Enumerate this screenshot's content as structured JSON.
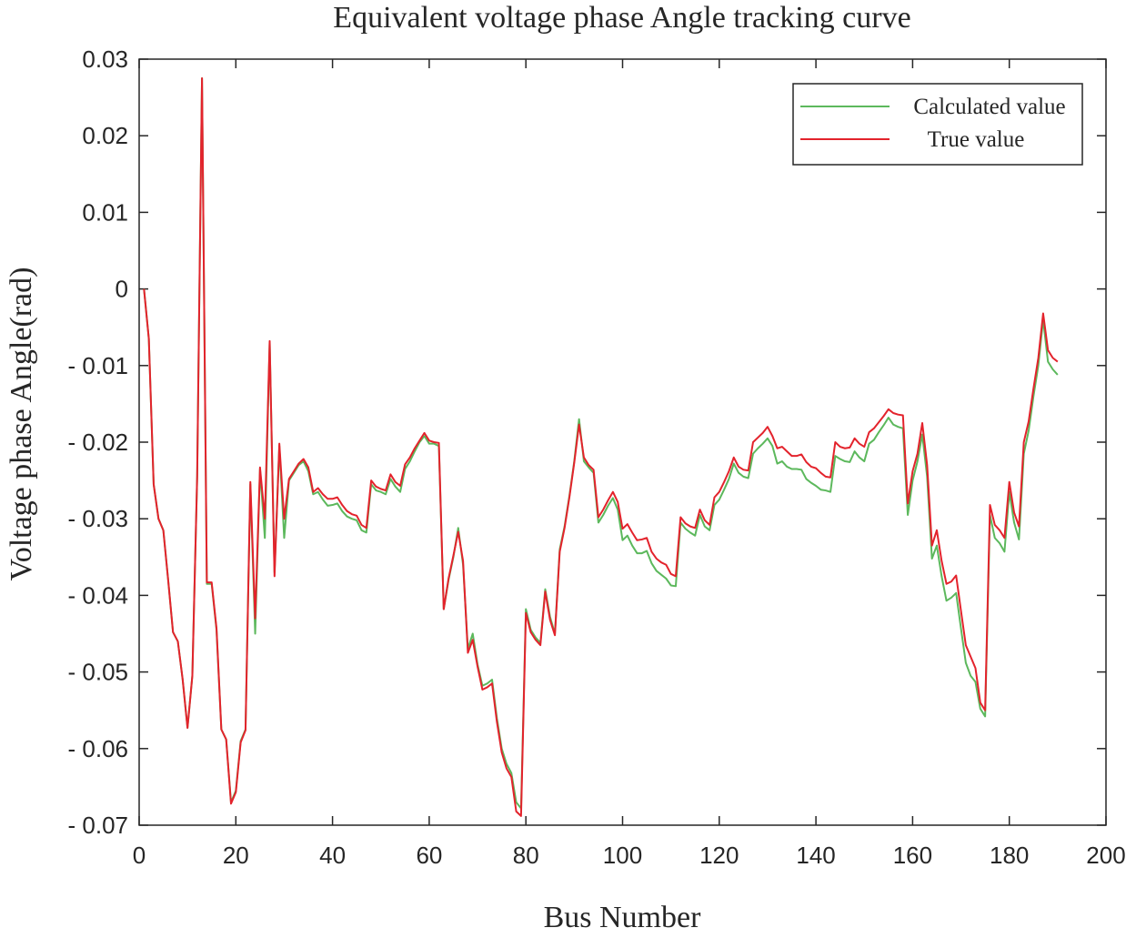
{
  "chart_data": {
    "type": "line",
    "title": "Equivalent voltage phase Angle tracking curve",
    "xlabel": "Bus Number",
    "ylabel": "Voltage phase Angle(rad)",
    "xlim": [
      0,
      200
    ],
    "ylim": [
      -0.07,
      0.03
    ],
    "xticks": [
      "0",
      "20",
      "40",
      "60",
      "80",
      "100",
      "120",
      "140",
      "160",
      "180",
      "200"
    ],
    "yticks": [
      "0.03",
      "0.02",
      "0.01",
      "0",
      "- 0.01",
      "- 0.02",
      "- 0.03",
      "- 0.04",
      "- 0.05",
      "- 0.06",
      "- 0.07"
    ],
    "grid": false,
    "legend_position": "top-right",
    "series": [
      {
        "name": "Calculated value",
        "color": "#5cb85c",
        "x": [
          1,
          2,
          3,
          4,
          5,
          6,
          7,
          8,
          9,
          10,
          11,
          12,
          13,
          14,
          15,
          16,
          17,
          18,
          19,
          20,
          21,
          22,
          23,
          24,
          25,
          26,
          27,
          28,
          29,
          30,
          31,
          32,
          33,
          34,
          35,
          36,
          37,
          38,
          39,
          40,
          41,
          42,
          43,
          44,
          45,
          46,
          47,
          48,
          49,
          50,
          51,
          52,
          53,
          54,
          55,
          56,
          57,
          58,
          59,
          60,
          61,
          62,
          63,
          64,
          65,
          66,
          67,
          68,
          69,
          70,
          71,
          72,
          73,
          74,
          75,
          76,
          77,
          78,
          79,
          80,
          81,
          82,
          83,
          84,
          85,
          86,
          87,
          88,
          89,
          90,
          91,
          92,
          93,
          94,
          95,
          96,
          97,
          98,
          99,
          100,
          101,
          102,
          103,
          104,
          105,
          106,
          107,
          108,
          109,
          110,
          111,
          112,
          113,
          114,
          115,
          116,
          117,
          118,
          119,
          120,
          121,
          122,
          123,
          124,
          125,
          126,
          127,
          128,
          129,
          130,
          131,
          132,
          133,
          134,
          135,
          136,
          137,
          138,
          139,
          140,
          141,
          142,
          143,
          144,
          145,
          146,
          147,
          148,
          149,
          150,
          151,
          152,
          153,
          154,
          155,
          156,
          157,
          158,
          159,
          160,
          161,
          162,
          163,
          164,
          165,
          166,
          167,
          168,
          169,
          170,
          171,
          172,
          173,
          174,
          175,
          176,
          177,
          178,
          179,
          180,
          181,
          182,
          183,
          184,
          185,
          186,
          187,
          188,
          189,
          190
        ],
        "y": [
          0,
          -0.0065,
          -0.0255,
          -0.03,
          -0.0315,
          -0.038,
          -0.0448,
          -0.046,
          -0.051,
          -0.0573,
          -0.0505,
          -0.0245,
          0.0275,
          -0.0385,
          -0.0385,
          -0.0445,
          -0.0575,
          -0.0588,
          -0.067,
          -0.0655,
          -0.059,
          -0.0575,
          -0.0255,
          -0.045,
          -0.0235,
          -0.0325,
          -0.007,
          -0.037,
          -0.0205,
          -0.0325,
          -0.025,
          -0.024,
          -0.023,
          -0.0225,
          -0.0238,
          -0.0268,
          -0.0265,
          -0.0275,
          -0.0283,
          -0.0282,
          -0.028,
          -0.029,
          -0.0297,
          -0.03,
          -0.0302,
          -0.0315,
          -0.0318,
          -0.0255,
          -0.0263,
          -0.0265,
          -0.0268,
          -0.0248,
          -0.0258,
          -0.0265,
          -0.0235,
          -0.0225,
          -0.0212,
          -0.02,
          -0.0192,
          -0.0202,
          -0.0202,
          -0.0205,
          -0.0418,
          -0.038,
          -0.035,
          -0.0312,
          -0.036,
          -0.047,
          -0.045,
          -0.049,
          -0.0518,
          -0.0515,
          -0.051,
          -0.056,
          -0.06,
          -0.062,
          -0.0632,
          -0.067,
          -0.0678,
          -0.0418,
          -0.0445,
          -0.0455,
          -0.0462,
          -0.0392,
          -0.0428,
          -0.045,
          -0.034,
          -0.031,
          -0.027,
          -0.0225,
          -0.017,
          -0.0225,
          -0.0233,
          -0.024,
          -0.0305,
          -0.0295,
          -0.0283,
          -0.0273,
          -0.0288,
          -0.0328,
          -0.0322,
          -0.0335,
          -0.0345,
          -0.0345,
          -0.0342,
          -0.0358,
          -0.0368,
          -0.0373,
          -0.0378,
          -0.0387,
          -0.0388,
          -0.0305,
          -0.0313,
          -0.0318,
          -0.0322,
          -0.0295,
          -0.031,
          -0.0315,
          -0.0282,
          -0.0275,
          -0.0262,
          -0.0248,
          -0.0228,
          -0.024,
          -0.0245,
          -0.0247,
          -0.0215,
          -0.0208,
          -0.0202,
          -0.0195,
          -0.0205,
          -0.0228,
          -0.0225,
          -0.0232,
          -0.0235,
          -0.0235,
          -0.0236,
          -0.0248,
          -0.0253,
          -0.0257,
          -0.0262,
          -0.0263,
          -0.0265,
          -0.0218,
          -0.0222,
          -0.0225,
          -0.0226,
          -0.0212,
          -0.022,
          -0.0225,
          -0.0202,
          -0.0197,
          -0.0187,
          -0.0178,
          -0.0168,
          -0.0177,
          -0.018,
          -0.0182,
          -0.0295,
          -0.025,
          -0.0225,
          -0.019,
          -0.0245,
          -0.0352,
          -0.0335,
          -0.0375,
          -0.0407,
          -0.0403,
          -0.0397,
          -0.0443,
          -0.0488,
          -0.0505,
          -0.0513,
          -0.0548,
          -0.0558,
          -0.0295,
          -0.0325,
          -0.0332,
          -0.0343,
          -0.0265,
          -0.0305,
          -0.0327,
          -0.0215,
          -0.0185,
          -0.014,
          -0.01,
          -0.004,
          -0.0095,
          -0.0105,
          -0.0112
        ]
      },
      {
        "name": "True value",
        "color": "#e3232c",
        "x": [
          1,
          2,
          3,
          4,
          5,
          6,
          7,
          8,
          9,
          10,
          11,
          12,
          13,
          14,
          15,
          16,
          17,
          18,
          19,
          20,
          21,
          22,
          23,
          24,
          25,
          26,
          27,
          28,
          29,
          30,
          31,
          32,
          33,
          34,
          35,
          36,
          37,
          38,
          39,
          40,
          41,
          42,
          43,
          44,
          45,
          46,
          47,
          48,
          49,
          50,
          51,
          52,
          53,
          54,
          55,
          56,
          57,
          58,
          59,
          60,
          61,
          62,
          63,
          64,
          65,
          66,
          67,
          68,
          69,
          70,
          71,
          72,
          73,
          74,
          75,
          76,
          77,
          78,
          79,
          80,
          81,
          82,
          83,
          84,
          85,
          86,
          87,
          88,
          89,
          90,
          91,
          92,
          93,
          94,
          95,
          96,
          97,
          98,
          99,
          100,
          101,
          102,
          103,
          104,
          105,
          106,
          107,
          108,
          109,
          110,
          111,
          112,
          113,
          114,
          115,
          116,
          117,
          118,
          119,
          120,
          121,
          122,
          123,
          124,
          125,
          126,
          127,
          128,
          129,
          130,
          131,
          132,
          133,
          134,
          135,
          136,
          137,
          138,
          139,
          140,
          141,
          142,
          143,
          144,
          145,
          146,
          147,
          148,
          149,
          150,
          151,
          152,
          153,
          154,
          155,
          156,
          157,
          158,
          159,
          160,
          161,
          162,
          163,
          164,
          165,
          166,
          167,
          168,
          169,
          170,
          171,
          172,
          173,
          174,
          175,
          176,
          177,
          178,
          179,
          180,
          181,
          182,
          183,
          184,
          185,
          186,
          187,
          188,
          189,
          190
        ],
        "y": [
          0,
          -0.0065,
          -0.0255,
          -0.03,
          -0.0315,
          -0.038,
          -0.0448,
          -0.046,
          -0.051,
          -0.0573,
          -0.0505,
          -0.0245,
          0.0275,
          -0.0383,
          -0.0383,
          -0.0443,
          -0.0575,
          -0.0588,
          -0.0672,
          -0.0657,
          -0.0592,
          -0.0576,
          -0.0252,
          -0.043,
          -0.0233,
          -0.03,
          -0.0068,
          -0.0375,
          -0.0202,
          -0.03,
          -0.0248,
          -0.0238,
          -0.0228,
          -0.0222,
          -0.0233,
          -0.0265,
          -0.026,
          -0.0268,
          -0.0274,
          -0.0274,
          -0.0272,
          -0.0282,
          -0.029,
          -0.0294,
          -0.0296,
          -0.0308,
          -0.0312,
          -0.025,
          -0.0258,
          -0.0261,
          -0.0263,
          -0.0242,
          -0.0252,
          -0.0257,
          -0.0229,
          -0.022,
          -0.0208,
          -0.0198,
          -0.0188,
          -0.0198,
          -0.02,
          -0.0201,
          -0.0418,
          -0.0378,
          -0.0348,
          -0.0317,
          -0.0355,
          -0.0475,
          -0.0458,
          -0.0493,
          -0.0523,
          -0.052,
          -0.0515,
          -0.0565,
          -0.0605,
          -0.0626,
          -0.0637,
          -0.0682,
          -0.0688,
          -0.0423,
          -0.0448,
          -0.0458,
          -0.0465,
          -0.0395,
          -0.0432,
          -0.0452,
          -0.0343,
          -0.0312,
          -0.0272,
          -0.0227,
          -0.0177,
          -0.022,
          -0.023,
          -0.0236,
          -0.0298,
          -0.0288,
          -0.0276,
          -0.0265,
          -0.0278,
          -0.0313,
          -0.0307,
          -0.0318,
          -0.0328,
          -0.0327,
          -0.0325,
          -0.0343,
          -0.0352,
          -0.0357,
          -0.036,
          -0.0372,
          -0.0375,
          -0.0298,
          -0.0306,
          -0.031,
          -0.0312,
          -0.0288,
          -0.0302,
          -0.0308,
          -0.0272,
          -0.0265,
          -0.0252,
          -0.0238,
          -0.022,
          -0.0232,
          -0.0236,
          -0.0237,
          -0.02,
          -0.0194,
          -0.0188,
          -0.018,
          -0.0192,
          -0.0208,
          -0.0206,
          -0.0212,
          -0.0218,
          -0.0218,
          -0.0216,
          -0.0226,
          -0.0232,
          -0.0234,
          -0.024,
          -0.0245,
          -0.0246,
          -0.02,
          -0.0206,
          -0.0208,
          -0.0207,
          -0.0195,
          -0.0202,
          -0.0206,
          -0.0187,
          -0.0182,
          -0.0174,
          -0.0166,
          -0.0157,
          -0.0162,
          -0.0164,
          -0.0165,
          -0.028,
          -0.0238,
          -0.0215,
          -0.0175,
          -0.023,
          -0.0335,
          -0.0315,
          -0.0355,
          -0.0385,
          -0.0382,
          -0.0374,
          -0.042,
          -0.0465,
          -0.048,
          -0.0495,
          -0.054,
          -0.055,
          -0.0282,
          -0.0308,
          -0.0315,
          -0.0325,
          -0.0252,
          -0.0292,
          -0.031,
          -0.02,
          -0.0173,
          -0.013,
          -0.009,
          -0.0032,
          -0.008,
          -0.009,
          -0.0095
        ]
      }
    ]
  }
}
